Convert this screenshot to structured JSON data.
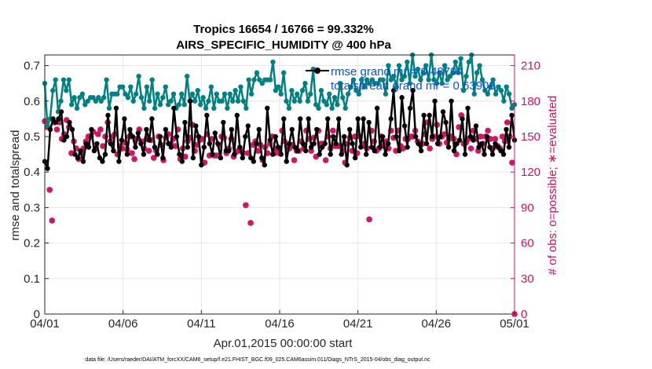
{
  "chart_data": {
    "type": "line",
    "title": "Tropics 16654 / 16766 = 99.332%",
    "subtitle": "AIRS_SPECIFIC_HUMIDITY @ 400 hPa",
    "xlabel": "Apr.01,2015 00:00:00 start",
    "ylabel": "rmse and totalspread",
    "ylabel_right": "# of obs: o=possible; ∗=evaluated",
    "x_tick_labels": [
      "04/01",
      "04/06",
      "04/11",
      "04/16",
      "04/21",
      "04/26",
      "05/01"
    ],
    "x_ticks": [
      0,
      5,
      10,
      15,
      20,
      25,
      30
    ],
    "xlim": [
      0,
      30
    ],
    "ylim": [
      0,
      0.73
    ],
    "y_ticks": [
      0,
      0.1,
      0.2,
      0.3,
      0.4,
      0.5,
      0.6,
      0.7
    ],
    "y_tick_labels": [
      "0",
      "0.1",
      "0.2",
      "0.3",
      "0.4",
      "0.5",
      "0.6",
      "0.7"
    ],
    "ylim_right": [
      0,
      219
    ],
    "y_ticks_right": [
      0,
      30,
      60,
      90,
      120,
      150,
      180,
      210
    ],
    "y_tick_labels_right": [
      "0",
      "30",
      "60",
      "90",
      "120",
      "150",
      "180",
      "210"
    ],
    "legend": [
      {
        "label": "rmse  grand mr = 0.48794",
        "color": "#000000"
      },
      {
        "label": "totalspread  grand mr = 0.63908",
        "color": "#008080"
      }
    ],
    "series": [
      {
        "name": "rmse",
        "color": "#000000",
        "marker": "circle",
        "values": [
          0.43,
          0.41,
          0.52,
          0.55,
          0.54,
          0.55,
          0.57,
          0.49,
          0.5,
          0.54,
          0.52,
          0.45,
          0.44,
          0.46,
          0.43,
          0.48,
          0.47,
          0.52,
          0.46,
          0.48,
          0.44,
          0.43,
          0.45,
          0.56,
          0.48,
          0.46,
          0.58,
          0.43,
          0.49,
          0.55,
          0.45,
          0.52,
          0.5,
          0.47,
          0.51,
          0.48,
          0.45,
          0.52,
          0.49,
          0.55,
          0.47,
          0.45,
          0.5,
          0.44,
          0.52,
          0.48,
          0.47,
          0.58,
          0.5,
          0.45,
          0.43,
          0.54,
          0.47,
          0.6,
          0.44,
          0.53,
          0.5,
          0.42,
          0.47,
          0.56,
          0.48,
          0.45,
          0.51,
          0.48,
          0.44,
          0.54,
          0.46,
          0.46,
          0.52,
          0.45,
          0.56,
          0.47,
          0.44,
          0.5,
          0.53,
          0.44,
          0.43,
          0.48,
          0.52,
          0.44,
          0.42,
          0.58,
          0.49,
          0.45,
          0.5,
          0.47,
          0.45,
          0.55,
          0.43,
          0.48,
          0.52,
          0.47,
          0.46,
          0.55,
          0.48,
          0.46,
          0.55,
          0.47,
          0.48,
          0.52,
          0.45,
          0.47,
          0.48,
          0.55,
          0.45,
          0.5,
          0.48,
          0.55,
          0.45,
          0.5,
          0.42,
          0.52,
          0.48,
          0.44,
          0.55,
          0.47,
          0.55,
          0.45,
          0.54,
          0.47,
          0.46,
          0.58,
          0.47,
          0.5,
          0.45,
          0.48,
          0.55,
          0.63,
          0.5,
          0.46,
          0.61,
          0.53,
          0.47,
          0.58,
          0.63,
          0.5,
          0.48,
          0.46,
          0.56,
          0.48,
          0.56,
          0.5,
          0.6,
          0.48,
          0.5,
          0.57,
          0.54,
          0.47,
          0.6,
          0.46,
          0.48,
          0.49,
          0.55,
          0.45,
          0.58,
          0.5,
          0.49,
          0.53,
          0.47,
          0.48,
          0.45,
          0.5,
          0.47,
          0.45,
          0.48,
          0.47,
          0.46,
          0.45,
          0.52,
          0.47,
          0.56,
          0.49
        ]
      },
      {
        "name": "totalspread",
        "color": "#008080",
        "marker": "circle",
        "values": [
          0.65,
          0.53,
          0.55,
          0.63,
          0.66,
          0.57,
          0.6,
          0.66,
          0.63,
          0.66,
          0.59,
          0.61,
          0.58,
          0.61,
          0.62,
          0.59,
          0.6,
          0.61,
          0.61,
          0.6,
          0.61,
          0.6,
          0.61,
          0.66,
          0.58,
          0.62,
          0.62,
          0.62,
          0.64,
          0.64,
          0.62,
          0.61,
          0.64,
          0.6,
          0.62,
          0.67,
          0.61,
          0.58,
          0.64,
          0.6,
          0.66,
          0.58,
          0.62,
          0.59,
          0.61,
          0.64,
          0.59,
          0.6,
          0.62,
          0.58,
          0.59,
          0.62,
          0.59,
          0.67,
          0.6,
          0.62,
          0.6,
          0.63,
          0.59,
          0.61,
          0.58,
          0.6,
          0.64,
          0.58,
          0.62,
          0.6,
          0.6,
          0.62,
          0.58,
          0.62,
          0.6,
          0.63,
          0.6,
          0.64,
          0.6,
          0.58,
          0.66,
          0.62,
          0.66,
          0.68,
          0.66,
          0.65,
          0.66,
          0.66,
          0.66,
          0.71,
          0.63,
          0.64,
          0.62,
          0.68,
          0.6,
          0.58,
          0.63,
          0.6,
          0.62,
          0.6,
          0.63,
          0.65,
          0.6,
          0.62,
          0.69,
          0.59,
          0.58,
          0.63,
          0.6,
          0.59,
          0.62,
          0.58,
          0.61,
          0.59,
          0.65,
          0.61,
          0.58,
          0.62,
          0.64,
          0.66,
          0.63,
          0.62,
          0.66,
          0.64,
          0.66,
          0.65,
          0.66,
          0.65,
          0.65,
          0.66,
          0.66,
          0.62,
          0.7,
          0.66,
          0.67,
          0.64,
          0.7,
          0.66,
          0.67,
          0.71,
          0.65,
          0.73,
          0.67,
          0.69,
          0.66,
          0.68,
          0.7,
          0.66,
          0.73,
          0.66,
          0.65,
          0.68,
          0.65,
          0.7,
          0.66,
          0.67,
          0.68,
          0.71,
          0.68,
          0.72,
          0.63,
          0.67,
          0.71,
          0.73,
          0.62,
          0.68,
          0.7,
          0.66,
          0.63,
          0.62,
          0.64,
          0.66,
          0.62,
          0.64,
          0.63,
          0.6,
          0.64,
          0.62,
          0.58,
          0.59
        ]
      },
      {
        "name": "# obs possible",
        "color": "#d01060",
        "marker": "open-circle",
        "axis": "right",
        "values": [
          163,
          158,
          105,
          79,
          162,
          156,
          162,
          148,
          152,
          164,
          158,
          136,
          146,
          140,
          131,
          136,
          140,
          146,
          150,
          150,
          154,
          140,
          152,
          156,
          142,
          150,
          162,
          146,
          150,
          152,
          135,
          142,
          140,
          145,
          139,
          150,
          136,
          131,
          148,
          156,
          146,
          140,
          148,
          138,
          147,
          132,
          138,
          150,
          143,
          130,
          149,
          152,
          144,
          148,
          142,
          156,
          131,
          140,
          133,
          146,
          149,
          160,
          138,
          143,
          147,
          148,
          128,
          152,
          134,
          148,
          134,
          134,
          143,
          150,
          149,
          136,
          140,
          148,
          133,
          137,
          138,
          138,
          136,
          92,
          136,
          77,
          143,
          146,
          138,
          143,
          130,
          141,
          136,
          144,
          150,
          136,
          140,
          136,
          155,
          146,
          142,
          140,
          143,
          130,
          138,
          138,
          146,
          140,
          155,
          148,
          138,
          149,
          133,
          155,
          144,
          144,
          130,
          150,
          140,
          155,
          142,
          142,
          142,
          138,
          128,
          144,
          149,
          138,
          150,
          136,
          150,
          142,
          144,
          140,
          80,
          155,
          146,
          138,
          140,
          150,
          142,
          146,
          140,
          155,
          149,
          138,
          155,
          142,
          140,
          148,
          148,
          150,
          150,
          155,
          146,
          144,
          144,
          152,
          162,
          140,
          148,
          150,
          160,
          144,
          150,
          152,
          145,
          148,
          150,
          148,
          135,
          158,
          168,
          144,
          145,
          148,
          140,
          155,
          148,
          138,
          150,
          144,
          150,
          155,
          148,
          140,
          148,
          142,
          140,
          150,
          146,
          162,
          150,
          128,
          0
        ]
      },
      {
        "name": "# obs evaluated",
        "color": "#d01060",
        "marker": "asterisk",
        "axis": "right",
        "values": [
          163,
          158,
          105,
          79,
          162,
          156,
          162,
          148,
          152,
          164,
          158,
          136,
          146,
          140,
          131,
          136,
          140,
          146,
          150,
          150,
          154,
          140,
          152,
          156,
          142,
          150,
          162,
          146,
          150,
          152,
          135,
          142,
          140,
          145,
          139,
          150,
          136,
          131,
          148,
          156,
          146,
          140,
          148,
          138,
          147,
          132,
          138,
          150,
          143,
          130,
          149,
          152,
          144,
          148,
          142,
          156,
          131,
          140,
          133,
          146,
          149,
          160,
          138,
          143,
          147,
          148,
          128,
          152,
          134,
          148,
          134,
          134,
          143,
          150,
          149,
          136,
          140,
          148,
          133,
          137,
          138,
          138,
          136,
          92,
          136,
          77,
          143,
          146,
          138,
          143,
          130,
          141,
          136,
          144,
          150,
          136,
          140,
          136,
          155,
          146,
          142,
          140,
          143,
          130,
          138,
          138,
          146,
          140,
          155,
          148,
          138,
          149,
          133,
          155,
          144,
          144,
          130,
          150,
          140,
          155,
          142,
          142,
          142,
          138,
          128,
          144,
          149,
          138,
          150,
          136,
          150,
          142,
          144,
          140,
          80,
          155,
          146,
          138,
          140,
          150,
          142,
          146,
          140,
          155,
          149,
          138,
          155,
          142,
          140,
          148,
          148,
          150,
          150,
          155,
          146,
          144,
          144,
          152,
          162,
          140,
          148,
          150,
          160,
          144,
          150,
          152,
          145,
          148,
          150,
          148,
          135,
          158,
          168,
          144,
          145,
          148,
          140,
          155,
          148,
          138,
          150,
          144,
          150,
          155,
          148,
          140,
          148,
          142,
          140,
          150,
          146,
          162,
          150,
          128,
          0
        ]
      }
    ]
  },
  "footer": "data file: /Users/raeder/DAI/ATM_forcXX/CAM6_setup/f.e21.FHIST_BGC.f09_025.CAM6assim.011/Diags_NTrS_2015-04/obs_diag_output.nc"
}
